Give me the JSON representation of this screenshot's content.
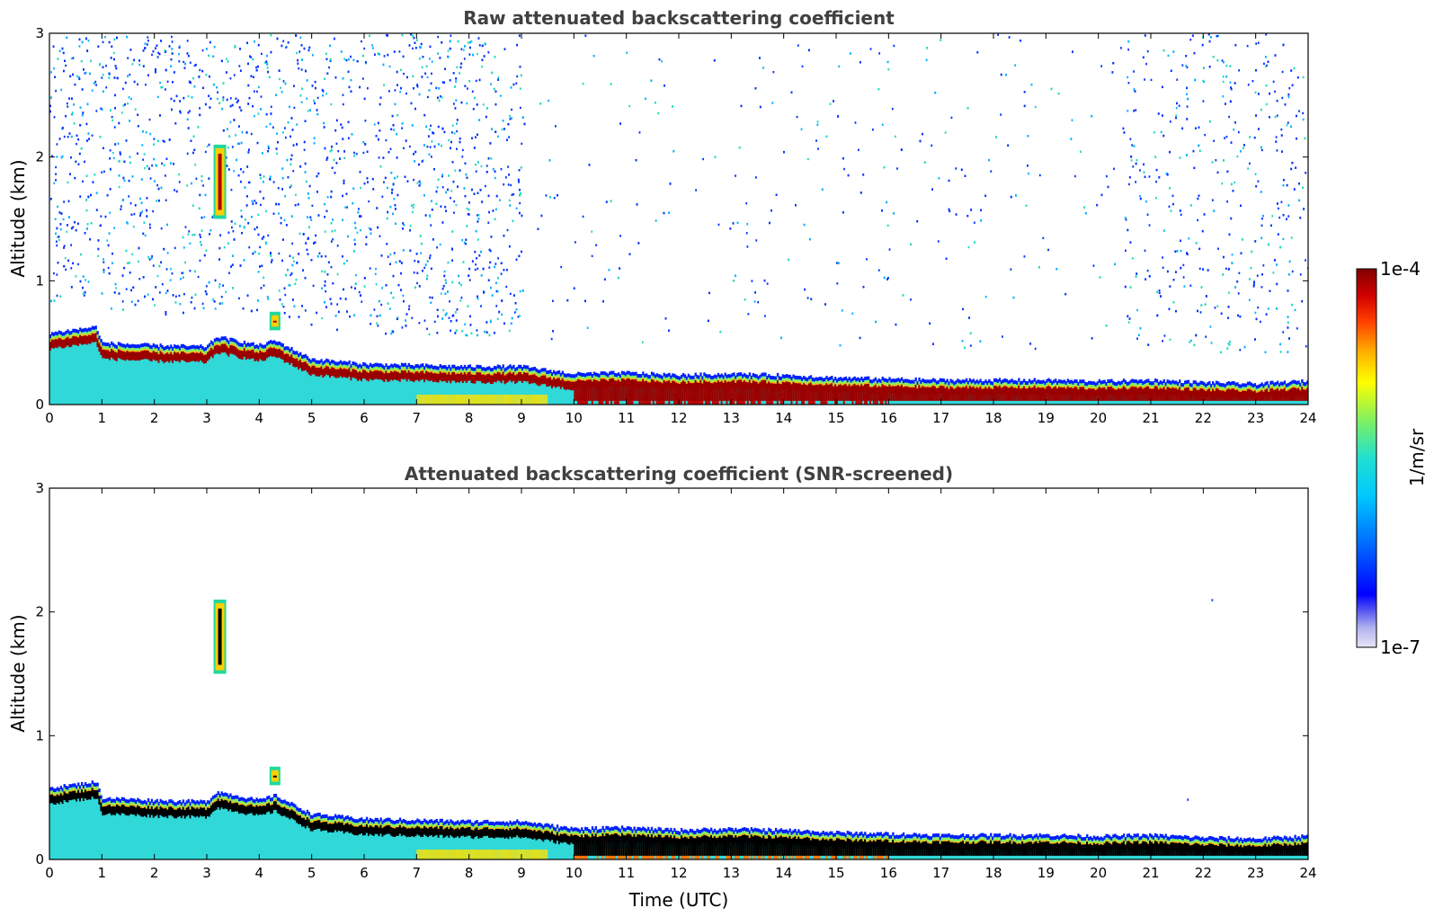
{
  "chart_data": [
    {
      "type": "heatmap",
      "title": "Raw attenuated backscattering coefficient",
      "xlabel": "",
      "ylabel": "Altitude (km)",
      "xlim": [
        0,
        24
      ],
      "ylim": [
        0,
        3
      ],
      "x_ticks": [
        "0",
        "1",
        "2",
        "3",
        "4",
        "5",
        "6",
        "7",
        "8",
        "9",
        "10",
        "11",
        "12",
        "13",
        "14",
        "15",
        "16",
        "17",
        "18",
        "19",
        "20",
        "21",
        "22",
        "23",
        "24"
      ],
      "y_ticks": [
        "0",
        "1",
        "2",
        "3"
      ],
      "boundary_layer_top_km": {
        "time_utc": [
          0,
          0.9,
          1.0,
          2,
          3,
          3.2,
          4,
          4.3,
          5,
          6,
          7,
          8,
          9,
          10,
          11,
          12,
          13,
          14,
          15,
          16,
          17,
          18,
          19,
          20,
          21,
          22,
          23,
          23.9
        ],
        "altitude_km": [
          0.58,
          0.63,
          0.5,
          0.48,
          0.47,
          0.55,
          0.48,
          0.52,
          0.37,
          0.33,
          0.32,
          0.31,
          0.31,
          0.25,
          0.26,
          0.24,
          0.25,
          0.24,
          0.22,
          0.21,
          0.2,
          0.2,
          0.2,
          0.19,
          0.2,
          0.18,
          0.17,
          0.19
        ]
      },
      "features": [
        {
          "time_utc": 3.25,
          "altitude_km": [
            1.5,
            2.1
          ],
          "level": "high"
        },
        {
          "time_utc": 4.3,
          "altitude_km": [
            0.6,
            0.75
          ],
          "level": "high"
        }
      ],
      "noise_above_layer": "scattered low values up to 3 km, denser before 9 UTC and after 21 UTC"
    },
    {
      "type": "heatmap",
      "title": "Attenuated backscattering coefficient (SNR-screened)",
      "xlabel": "Time (UTC)",
      "ylabel": "Altitude (km)",
      "xlim": [
        0,
        24
      ],
      "ylim": [
        0,
        3
      ],
      "x_ticks": [
        "0",
        "1",
        "2",
        "3",
        "4",
        "5",
        "6",
        "7",
        "8",
        "9",
        "10",
        "11",
        "12",
        "13",
        "14",
        "15",
        "16",
        "17",
        "18",
        "19",
        "20",
        "21",
        "22",
        "23",
        "24"
      ],
      "y_ticks": [
        "0",
        "1",
        "2",
        "3"
      ],
      "features": [
        {
          "time_utc": 3.25,
          "altitude_km": [
            1.5,
            2.1
          ],
          "level": "high"
        },
        {
          "time_utc": 4.3,
          "altitude_km": [
            0.6,
            0.75
          ],
          "level": "high"
        }
      ],
      "screened_color": "#000000"
    }
  ],
  "colorbar": {
    "label": "1/m/sr",
    "max_label": "1e-4",
    "min_label": "1e-7",
    "scale": "log",
    "colors": [
      "#e6e6f5",
      "#c8c8f0",
      "#a0a0f0",
      "#6464f0",
      "#0000ff",
      "#0060ff",
      "#00a0ff",
      "#00d0ff",
      "#20e0e0",
      "#40e8a0",
      "#80f060",
      "#c0f020",
      "#ffff00",
      "#ffd000",
      "#ffa000",
      "#ff6000",
      "#ff2000",
      "#e00000",
      "#b00000",
      "#800000"
    ]
  }
}
